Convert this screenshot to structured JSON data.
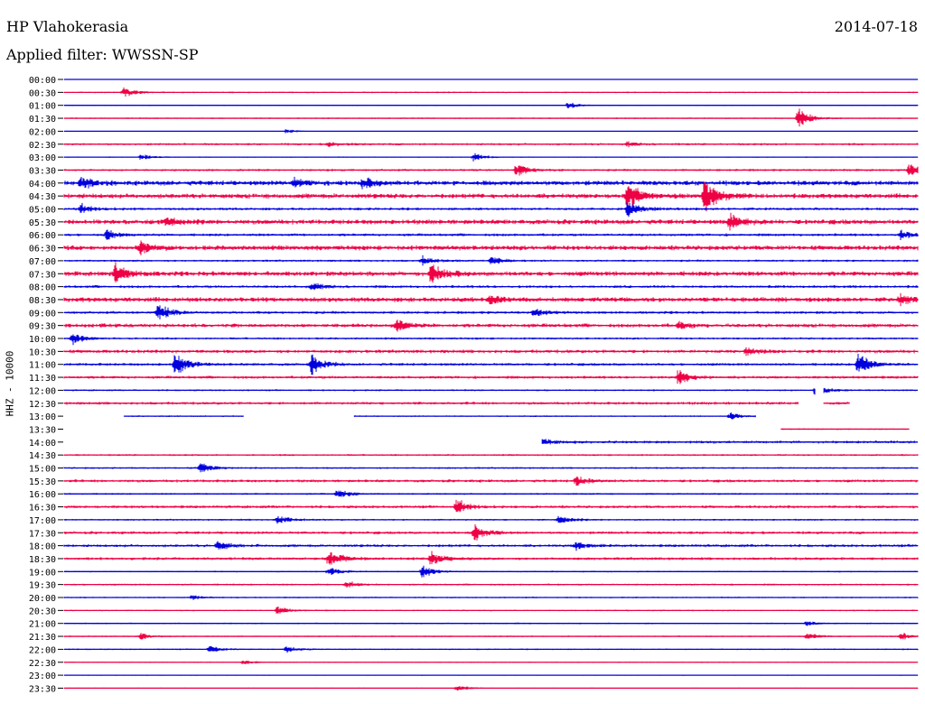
{
  "header": {
    "station": "HP Vlahokerasia",
    "date": "2014-07-18",
    "filter": "Applied filter: WWSSN-SP",
    "channel": "HHZ - 10000"
  },
  "colors": {
    "even": "#0000dd",
    "odd": "#ee0044"
  },
  "chart_data": {
    "type": "line",
    "title": "HP Vlahokerasia",
    "ylabel": "HHZ - 10000",
    "row_labels": [
      "00:00",
      "00:30",
      "01:00",
      "01:30",
      "02:00",
      "02:30",
      "03:00",
      "03:30",
      "04:00",
      "04:30",
      "05:00",
      "05:30",
      "06:00",
      "06:30",
      "07:00",
      "07:30",
      "08:00",
      "08:30",
      "09:00",
      "09:30",
      "10:00",
      "10:30",
      "11:00",
      "11:30",
      "12:00",
      "12:30",
      "13:00",
      "13:30",
      "14:00",
      "14:30",
      "15:00",
      "15:30",
      "16:00",
      "16:30",
      "17:00",
      "17:30",
      "18:00",
      "18:30",
      "19:00",
      "19:30",
      "20:00",
      "20:30",
      "21:00",
      "21:30",
      "22:00",
      "22:30",
      "23:00",
      "23:30"
    ],
    "noise_level": [
      0.3,
      0.8,
      0.5,
      0.8,
      0.3,
      1.2,
      0.6,
      1.2,
      2.5,
      2.5,
      1.5,
      2.5,
      1.5,
      2.5,
      1.2,
      2.5,
      1.5,
      2.5,
      1.5,
      2.0,
      1.2,
      1.8,
      1.5,
      1.5,
      1.0,
      1.5,
      0.8,
      0.8,
      1.5,
      1.0,
      1.0,
      1.5,
      1.0,
      1.5,
      1.0,
      1.5,
      1.5,
      1.5,
      0.8,
      1.0,
      0.8,
      0.8,
      0.8,
      0.8,
      0.8,
      0.6,
      0.5,
      0.5
    ],
    "events": [
      [],
      [
        {
          "x": 0.07,
          "amp": 7
        }
      ],
      [
        {
          "x": 0.59,
          "amp": 4
        }
      ],
      [
        {
          "x": 0.86,
          "amp": 14
        }
      ],
      [
        {
          "x": 0.26,
          "amp": 3
        }
      ],
      [
        {
          "x": 0.31,
          "amp": 3
        },
        {
          "x": 0.66,
          "amp": 3
        }
      ],
      [
        {
          "x": 0.48,
          "amp": 5
        },
        {
          "x": 0.09,
          "amp": 4
        }
      ],
      [
        {
          "x": 0.53,
          "amp": 9
        },
        {
          "x": 0.99,
          "amp": 8
        }
      ],
      [
        {
          "x": 0.02,
          "amp": 7
        },
        {
          "x": 0.27,
          "amp": 6
        },
        {
          "x": 0.35,
          "amp": 6
        }
      ],
      [
        {
          "x": 0.66,
          "amp": 18
        },
        {
          "x": 0.75,
          "amp": 22
        }
      ],
      [
        {
          "x": 0.02,
          "amp": 6
        },
        {
          "x": 0.66,
          "amp": 10
        }
      ],
      [
        {
          "x": 0.12,
          "amp": 6
        },
        {
          "x": 0.78,
          "amp": 10
        }
      ],
      [
        {
          "x": 0.05,
          "amp": 6
        },
        {
          "x": 0.98,
          "amp": 6
        }
      ],
      [
        {
          "x": 0.09,
          "amp": 8
        }
      ],
      [
        {
          "x": 0.42,
          "amp": 5
        },
        {
          "x": 0.5,
          "amp": 6
        }
      ],
      [
        {
          "x": 0.06,
          "amp": 12
        },
        {
          "x": 0.43,
          "amp": 12
        }
      ],
      [
        {
          "x": 0.29,
          "amp": 5
        }
      ],
      [
        {
          "x": 0.5,
          "amp": 6
        },
        {
          "x": 0.98,
          "amp": 6
        }
      ],
      [
        {
          "x": 0.11,
          "amp": 12
        },
        {
          "x": 0.55,
          "amp": 5
        }
      ],
      [
        {
          "x": 0.39,
          "amp": 8
        },
        {
          "x": 0.72,
          "amp": 5
        }
      ],
      [
        {
          "x": 0.01,
          "amp": 7
        }
      ],
      [
        {
          "x": 0.8,
          "amp": 5
        }
      ],
      [
        {
          "x": 0.13,
          "amp": 15
        },
        {
          "x": 0.29,
          "amp": 12
        },
        {
          "x": 0.93,
          "amp": 15
        }
      ],
      [
        {
          "x": 0.72,
          "amp": 10
        }
      ],
      [
        {
          "x": 0.88,
          "amp": 8
        }
      ],
      [],
      [
        {
          "x": 0.78,
          "amp": 5
        }
      ],
      [],
      [
        {
          "x": 0.56,
          "amp": 4
        }
      ],
      [],
      [
        {
          "x": 0.16,
          "amp": 7
        }
      ],
      [
        {
          "x": 0.6,
          "amp": 6
        }
      ],
      [
        {
          "x": 0.32,
          "amp": 6
        }
      ],
      [
        {
          "x": 0.46,
          "amp": 10
        }
      ],
      [
        {
          "x": 0.25,
          "amp": 6
        },
        {
          "x": 0.58,
          "amp": 6
        }
      ],
      [
        {
          "x": 0.48,
          "amp": 12
        }
      ],
      [
        {
          "x": 0.18,
          "amp": 6
        },
        {
          "x": 0.6,
          "amp": 6
        }
      ],
      [
        {
          "x": 0.31,
          "amp": 12
        },
        {
          "x": 0.43,
          "amp": 10
        }
      ],
      [
        {
          "x": 0.31,
          "amp": 6
        },
        {
          "x": 0.42,
          "amp": 8
        }
      ],
      [
        {
          "x": 0.33,
          "amp": 4
        }
      ],
      [
        {
          "x": 0.15,
          "amp": 3
        }
      ],
      [
        {
          "x": 0.25,
          "amp": 5
        }
      ],
      [
        {
          "x": 0.87,
          "amp": 3
        }
      ],
      [
        {
          "x": 0.09,
          "amp": 4
        },
        {
          "x": 0.87,
          "amp": 4
        },
        {
          "x": 0.98,
          "amp": 5
        }
      ],
      [
        {
          "x": 0.17,
          "amp": 5
        },
        {
          "x": 0.26,
          "amp": 4
        }
      ],
      [
        {
          "x": 0.21,
          "amp": 3
        }
      ],
      [],
      [
        {
          "x": 0.46,
          "amp": 4
        }
      ]
    ],
    "trace_segments": {
      "24": [
        [
          0.0,
          0.88
        ],
        [
          0.89,
          1.0
        ]
      ],
      "25": [
        [
          0.0,
          0.72
        ],
        [
          0.72,
          0.86
        ],
        [
          0.89,
          0.92
        ]
      ],
      "26": [
        [
          0.07,
          0.12
        ],
        [
          0.12,
          0.21
        ],
        [
          0.34,
          0.81
        ]
      ],
      "27": [
        [
          0.84,
          0.99
        ]
      ],
      "28": [
        [
          0.56,
          1.0
        ]
      ]
    }
  }
}
